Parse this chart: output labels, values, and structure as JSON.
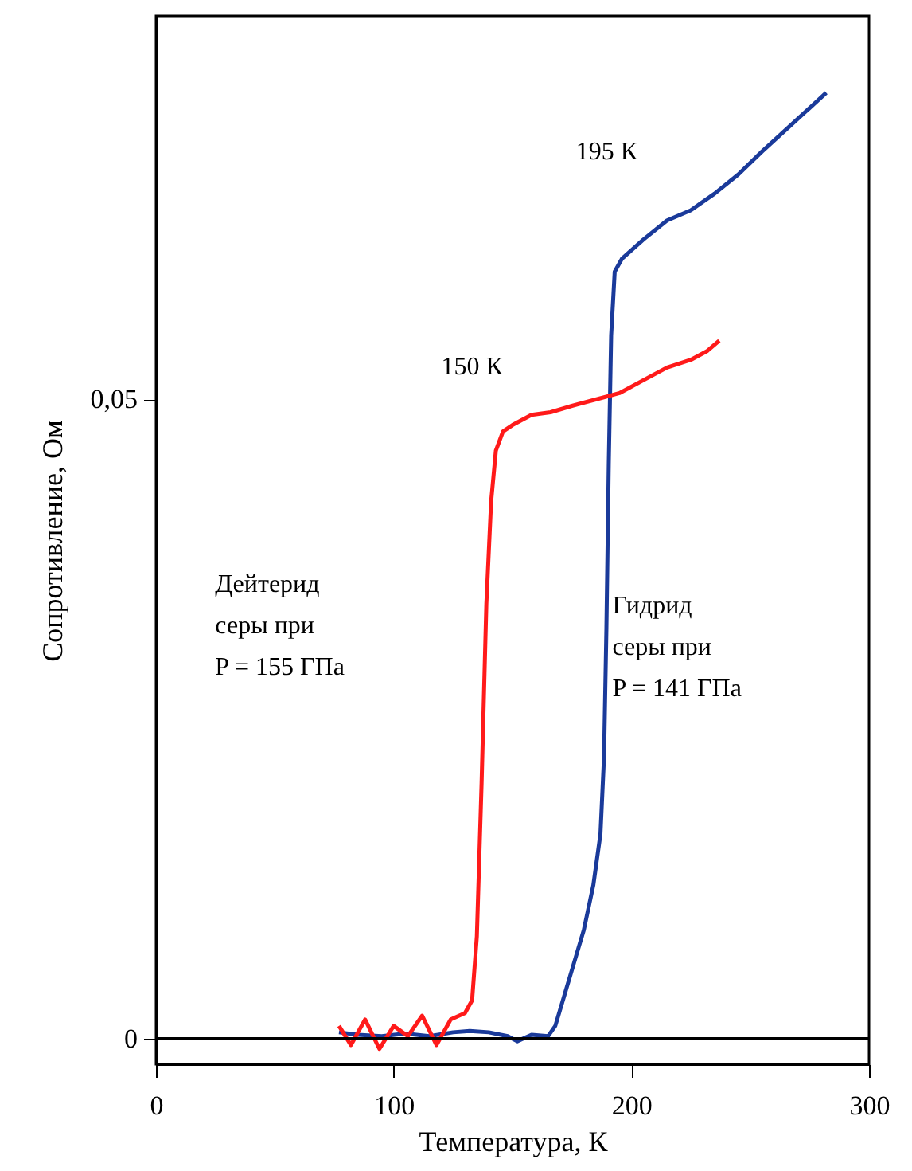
{
  "chart_data": {
    "type": "line",
    "xlabel": "Температура, К",
    "ylabel": "Сопротивление, Ом",
    "xlim": [
      0,
      300
    ],
    "ylim": [
      -0.002,
      0.08
    ],
    "xticks": [
      0,
      100,
      200,
      300
    ],
    "yticks": [
      0,
      {
        "value": 0.05,
        "label": "0,05"
      }
    ],
    "marker": "none",
    "line_style": "solid",
    "ref_lines": [
      {
        "axis": "y",
        "value": 0,
        "color": "#000000"
      }
    ],
    "series": [
      {
        "color": "#1a3a9a",
        "x": [
          77,
          85,
          95,
          105,
          115,
          125,
          132,
          140,
          148,
          152,
          158,
          165,
          168,
          172,
          176,
          180,
          184,
          187,
          188.5,
          189.5,
          190.5,
          191.5,
          193,
          196,
          205,
          215,
          225,
          235,
          245,
          255,
          265,
          275,
          282
        ],
        "values": [
          0.0005,
          0.0003,
          0.0002,
          0.0004,
          0.0002,
          0.0005,
          0.0006,
          0.0005,
          0.0002,
          -0.0002,
          0.0003,
          0.0002,
          0.001,
          0.0035,
          0.006,
          0.0085,
          0.012,
          0.016,
          0.022,
          0.032,
          0.045,
          0.055,
          0.06,
          0.061,
          0.0625,
          0.064,
          0.0648,
          0.0661,
          0.0676,
          0.0694,
          0.0711,
          0.0728,
          0.074
        ]
      },
      {
        "color": "#ff1a1a",
        "x": [
          77,
          82,
          88,
          94,
          100,
          106,
          112,
          118,
          124,
          130,
          133,
          135,
          137,
          139,
          141,
          143,
          146,
          150,
          158,
          166,
          175,
          185,
          195,
          205,
          215,
          225,
          232,
          237
        ],
        "values": [
          0.001,
          -0.0005,
          0.0015,
          -0.0008,
          0.001,
          0.0002,
          0.0018,
          -0.0005,
          0.0015,
          0.002,
          0.003,
          0.008,
          0.02,
          0.034,
          0.042,
          0.046,
          0.0475,
          0.048,
          0.0488,
          0.049,
          0.0495,
          0.05,
          0.0505,
          0.0515,
          0.0525,
          0.0531,
          0.0538,
          0.0546
        ]
      }
    ],
    "annotations": [
      "195 К",
      "150 К",
      "Дейтерид\nсеры при\nP = 155 ГПа",
      "Гидрид\nсеры при\nP = 141 ГПа"
    ]
  }
}
